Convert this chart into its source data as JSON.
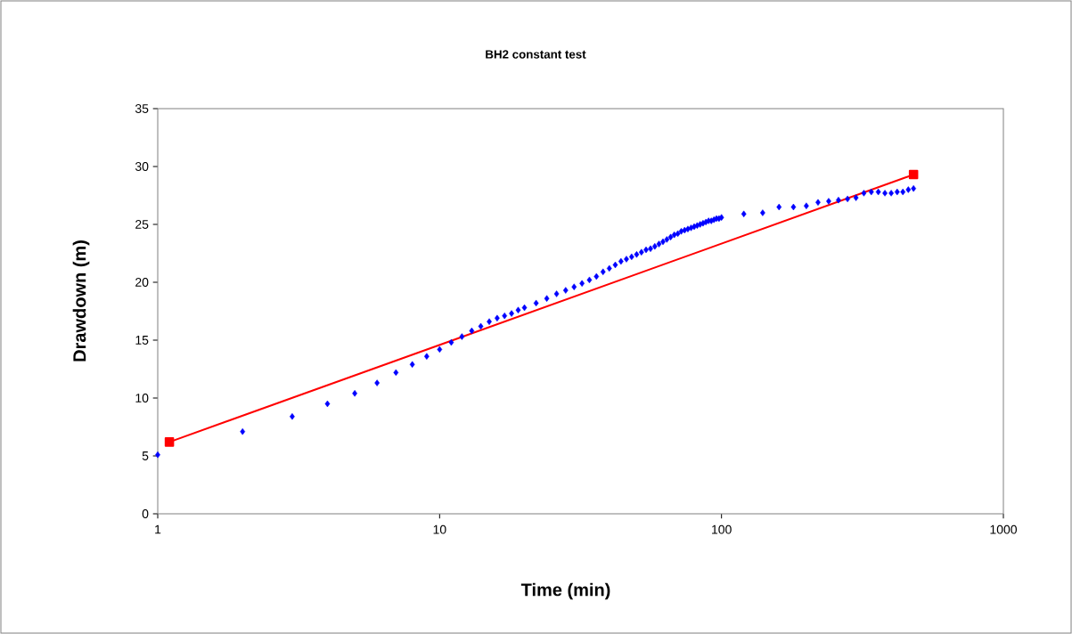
{
  "chart_data": {
    "type": "scatter",
    "title": "BH2 constant test",
    "xlabel": "Time (min)",
    "ylabel": "Drawdown (m)",
    "log": "x",
    "grid": false,
    "xlim": [
      1,
      1000
    ],
    "xticks": [
      1,
      10,
      100,
      1000
    ],
    "ylim": [
      0,
      35
    ],
    "yticks": [
      0,
      5,
      10,
      15,
      20,
      25,
      30,
      35
    ],
    "series": [
      {
        "color": "#0000ff",
        "marker": "diamond",
        "x": [
          1,
          2,
          3,
          4,
          5,
          6,
          7,
          8,
          9,
          10,
          11,
          12,
          13,
          14,
          15,
          16,
          17,
          18,
          19,
          20,
          22,
          24,
          26,
          28,
          30,
          32,
          34,
          36,
          38,
          40,
          42,
          44,
          46,
          48,
          50,
          52,
          54,
          56,
          58,
          60,
          62,
          64,
          66,
          68,
          70,
          72,
          74,
          76,
          78,
          80,
          82,
          84,
          86,
          88,
          90,
          92,
          94,
          96,
          98,
          100,
          120,
          140,
          160,
          180,
          200,
          220,
          240,
          260,
          280,
          300,
          320,
          340,
          360,
          380,
          400,
          420,
          440,
          460,
          480
        ],
        "values": [
          5.1,
          7.1,
          8.4,
          9.5,
          10.4,
          11.3,
          12.2,
          12.9,
          13.6,
          14.2,
          14.8,
          15.3,
          15.8,
          16.2,
          16.6,
          16.9,
          17.1,
          17.3,
          17.6,
          17.8,
          18.2,
          18.6,
          19.0,
          19.3,
          19.6,
          19.9,
          20.2,
          20.5,
          20.9,
          21.2,
          21.5,
          21.8,
          22.0,
          22.2,
          22.4,
          22.6,
          22.8,
          22.9,
          23.1,
          23.3,
          23.5,
          23.7,
          23.9,
          24.1,
          24.2,
          24.4,
          24.5,
          24.6,
          24.7,
          24.8,
          24.9,
          25.0,
          25.1,
          25.2,
          25.3,
          25.3,
          25.4,
          25.5,
          25.5,
          25.6,
          25.9,
          26.0,
          26.5,
          26.5,
          26.6,
          26.9,
          27.0,
          27.1,
          27.2,
          27.3,
          27.7,
          27.8,
          27.8,
          27.7,
          27.7,
          27.8,
          27.8,
          28.0,
          28.1
        ]
      },
      {
        "type": "line",
        "color": "#ff0000",
        "marker": "square",
        "x": [
          1.1,
          480
        ],
        "values": [
          6.2,
          29.3
        ]
      }
    ]
  }
}
